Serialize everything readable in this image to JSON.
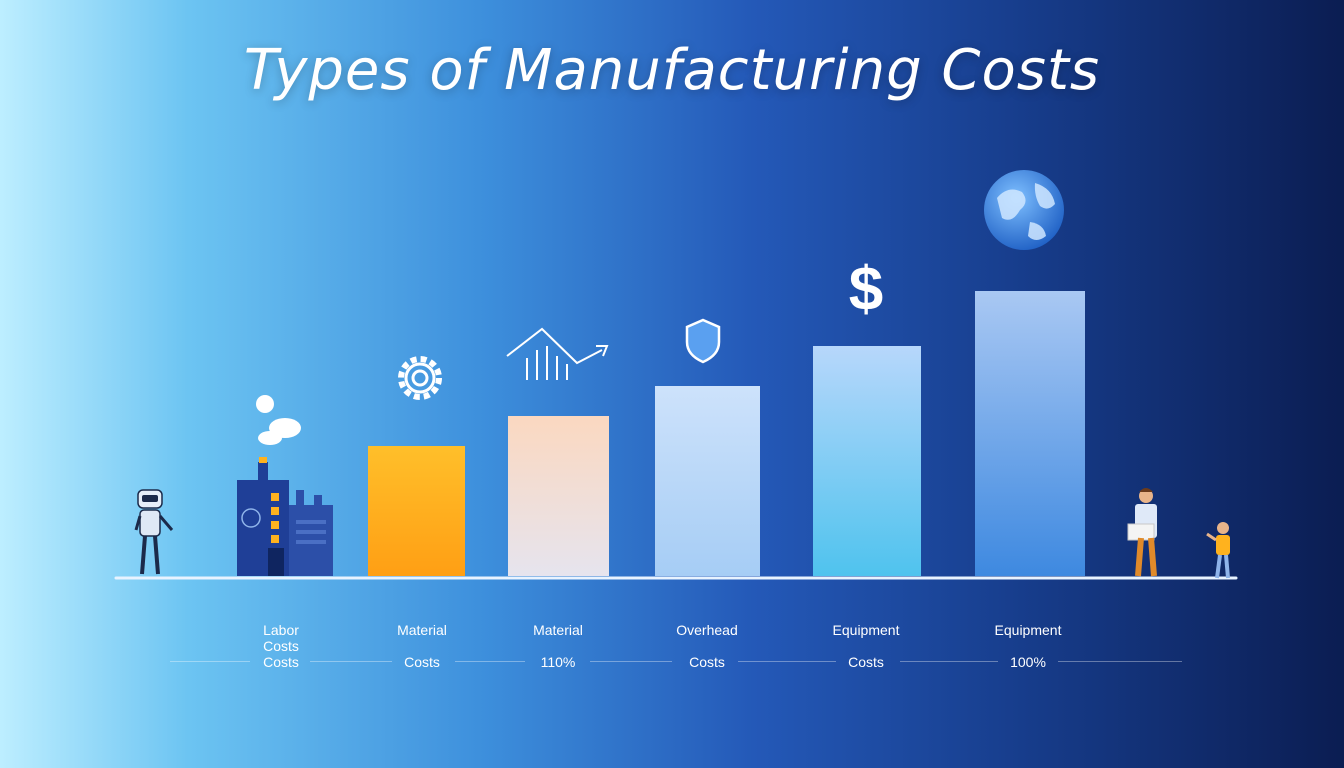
{
  "title": "Types of Manufacturing Costs",
  "chart_data": {
    "type": "bar",
    "title": "Types of Manufacturing Costs",
    "categories": [
      {
        "line1": "Labor",
        "line2": "Costs",
        "line3": "Costs"
      },
      {
        "line1": "Material",
        "line2": "",
        "line3": "Costs"
      },
      {
        "line1": "Material",
        "line2": "",
        "line3": "110%"
      },
      {
        "line1": "Overhead",
        "line2": "",
        "line3": "Costs"
      },
      {
        "line1": "Equipment",
        "line2": "",
        "line3": "Costs"
      },
      {
        "line1": "Equipment",
        "line2": "",
        "line3": "100%"
      }
    ],
    "values": [
      0,
      26,
      32,
      38,
      46,
      57
    ],
    "ylim": [
      0,
      60
    ],
    "bar_colors": [
      "#ffffff",
      "#ffb21e",
      "#f8dccb",
      "#c6defa",
      "#7fd0f5",
      "#6ea8ea"
    ],
    "grid": false,
    "legend": "none",
    "icons": [
      "factory-icon",
      "gear-icon",
      "trend-chart-icon",
      "shield-icon",
      "dollar-icon",
      "globe-icon"
    ]
  }
}
